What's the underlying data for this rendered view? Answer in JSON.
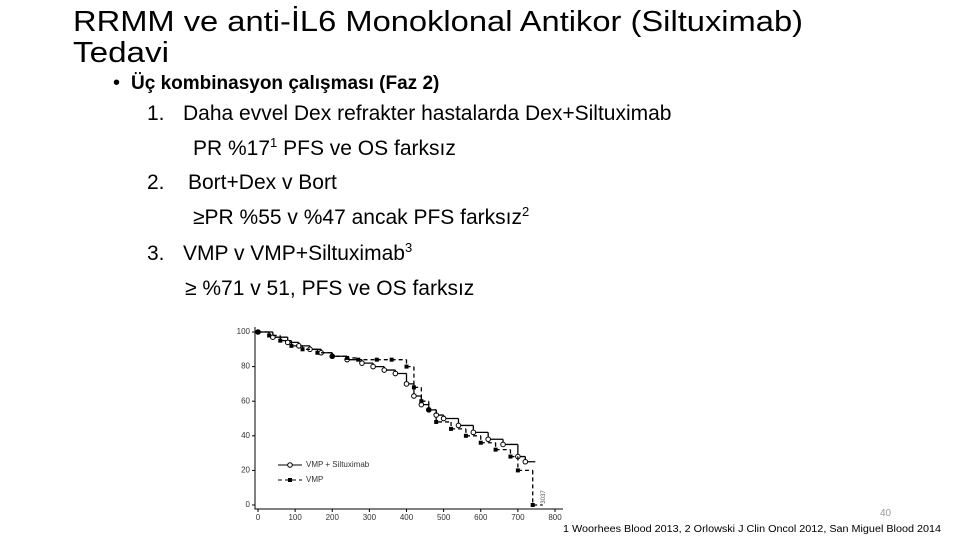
{
  "title": [
    "RRMM ve anti-İL6 Monoklonal Antikor (Siltuximab)",
    "Tedavi"
  ],
  "bullet": "Üç kombinasyon  çalışması (Faz 2)",
  "items": [
    {
      "number": "1.",
      "lines": [
        [
          {
            "text": "Daha evvel Dex  refrakter hastalarda Dex+Siltuximab"
          }
        ],
        [
          {
            "text": "PR %17"
          },
          {
            "sup": "1"
          },
          {
            "text": " PFS ve OS farksız"
          }
        ]
      ]
    },
    {
      "number": "2.",
      "lines": [
        [
          {
            "text": "Bort+Dex v Bort"
          }
        ],
        [
          {
            "text": "≥PR %55 v %47 ancak PFS farksız"
          },
          {
            "sup": "2"
          }
        ]
      ]
    },
    {
      "number": "3.",
      "lines": [
        [
          {
            "text": "VMP v VMP+Siltuximab"
          },
          {
            "sup": "3"
          }
        ],
        [
          {
            "text": "≥ %71 v 51, PFS ve OS farksız"
          }
        ]
      ]
    }
  ],
  "chart_data": {
    "type": "line",
    "step": true,
    "xlim": [
      0,
      800
    ],
    "ylim": [
      0,
      100
    ],
    "xticks": [
      0,
      100,
      200,
      300,
      400,
      500,
      600,
      700,
      800
    ],
    "yticks": [
      0,
      20,
      40,
      60,
      80,
      100
    ],
    "figure_id": "3037",
    "series": [
      {
        "name": "VMP + Siltuximab",
        "color": "#000000",
        "line_style": "solid",
        "marker": "circle",
        "x": [
          0,
          40,
          80,
          110,
          140,
          170,
          200,
          240,
          280,
          310,
          340,
          370,
          400,
          420,
          440,
          460,
          480,
          500,
          540,
          580,
          620,
          660,
          700,
          720
        ],
        "values": [
          100,
          97,
          94,
          92,
          90,
          88,
          86,
          84,
          82,
          80,
          78,
          76,
          70,
          63,
          58,
          55,
          52,
          50,
          46,
          42,
          38,
          35,
          28,
          25
        ]
      },
      {
        "name": "VMP",
        "color": "#000000",
        "line_style": "dashed",
        "marker": "square",
        "x": [
          0,
          30,
          60,
          90,
          120,
          160,
          200,
          240,
          270,
          320,
          360,
          400,
          420,
          440,
          460,
          480,
          520,
          560,
          600,
          640,
          680,
          700,
          740
        ],
        "values": [
          100,
          98,
          95,
          92,
          90,
          88,
          86,
          85,
          84,
          84,
          84,
          80,
          68,
          60,
          55,
          48,
          44,
          40,
          36,
          32,
          28,
          20,
          0
        ]
      }
    ]
  },
  "page_number": "40",
  "footnote": "1 Woorhees Blood 2013, 2 Orlowski J Clin Oncol 2012, San Miguel  Blood 2014"
}
